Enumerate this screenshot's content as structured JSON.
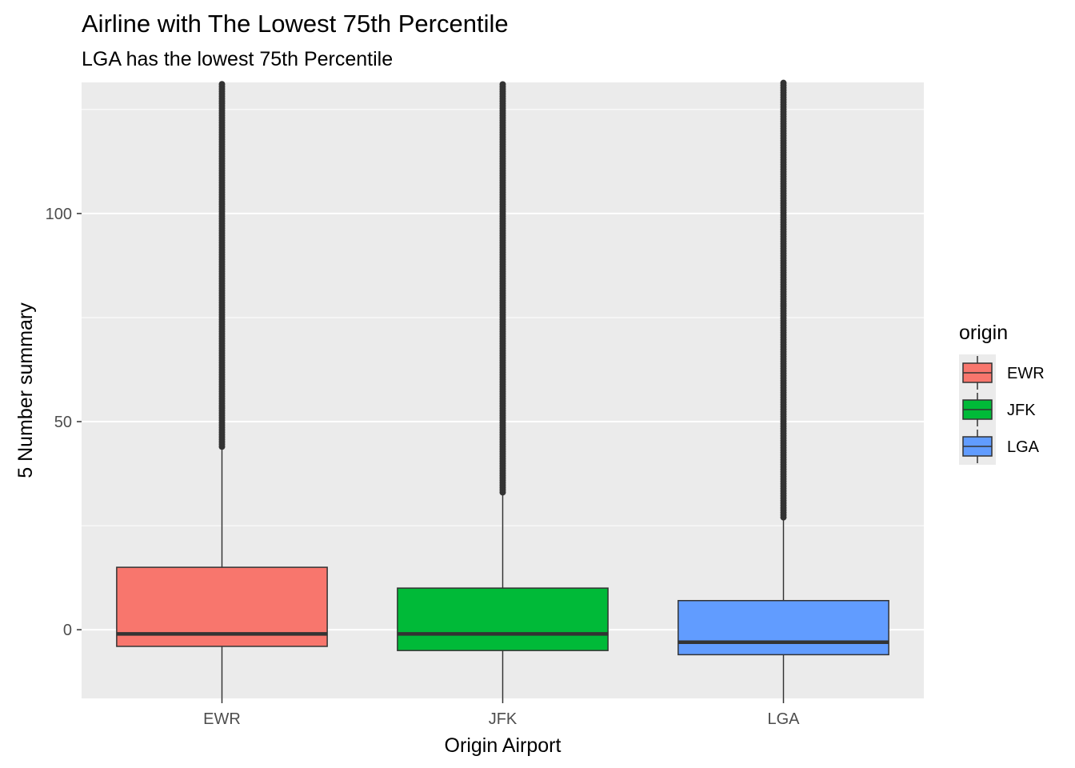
{
  "chart_data": {
    "type": "boxplot",
    "title": "Airline with The Lowest 75th Percentile",
    "subtitle": "LGA has the lowest 75th Percentile",
    "xlabel": "Origin Airport",
    "ylabel": "5 Number summary",
    "ylim": [
      -16.5,
      131.5
    ],
    "yticks": [
      0,
      50,
      100
    ],
    "ytick_labels": [
      "0",
      "50",
      "100"
    ],
    "categories": [
      "EWR",
      "JFK",
      "LGA"
    ],
    "series": [
      {
        "name": "EWR",
        "color": "#F8766D",
        "lower_whisker": -16.5,
        "q1": -4,
        "median": -1,
        "q3": 15,
        "upper_whisker": 44,
        "outliers_from": 44,
        "outliers_to": 131.5
      },
      {
        "name": "JFK",
        "color": "#00BA38",
        "lower_whisker": -16.5,
        "q1": -5,
        "median": -1,
        "q3": 10,
        "upper_whisker": 33,
        "outliers_from": 33,
        "outliers_to": 131.5
      },
      {
        "name": "LGA",
        "color": "#619CFF",
        "lower_whisker": -16.5,
        "q1": -6,
        "median": -3,
        "q3": 7,
        "upper_whisker": 27,
        "outliers_from": 27,
        "outliers_to": 131.5
      }
    ],
    "legend": {
      "title": "origin",
      "position": "right",
      "entries": [
        "EWR",
        "JFK",
        "LGA"
      ]
    }
  }
}
